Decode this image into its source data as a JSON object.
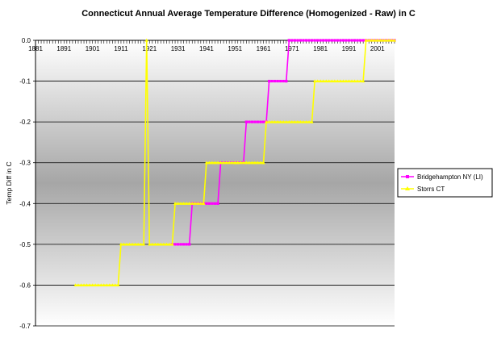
{
  "chart_data": {
    "type": "line",
    "title": "Connecticut Annual Average Temperature Difference (Homogenized - Raw) in C",
    "xlabel": "",
    "ylabel": "Temp Diff in C",
    "xlim": [
      1881,
      2007
    ],
    "ylim": [
      -0.7,
      0.0
    ],
    "x_tick_labels": [
      "1881",
      "1891",
      "1901",
      "1911",
      "1921",
      "1931",
      "1941",
      "1951",
      "1961",
      "1971",
      "1981",
      "1991",
      "2001"
    ],
    "y_tick_labels": [
      "0.0",
      "-0.1",
      "-0.2",
      "-0.3",
      "-0.4",
      "-0.5",
      "-0.6",
      "-0.7"
    ],
    "grid": true,
    "legend_position": "right",
    "colors": {
      "bridgehampton": "#FF00FF",
      "storrs": "#FFFF00",
      "plot_top": "#ffffff",
      "plot_bottom": "#a8a8a8"
    },
    "series": [
      {
        "name": "Bridgehampton NY (LI)",
        "color": "#FF00FF",
        "marker": "square",
        "points": [
          [
            1929,
            -0.5
          ],
          [
            1935,
            -0.5
          ],
          [
            1936,
            -0.4
          ],
          [
            1945,
            -0.4
          ],
          [
            1946,
            -0.3
          ],
          [
            1954,
            -0.3
          ],
          [
            1955,
            -0.2
          ],
          [
            1962,
            -0.2
          ],
          [
            1963,
            -0.1
          ],
          [
            1969,
            -0.1
          ],
          [
            1970,
            0.0
          ],
          [
            2007,
            0.0
          ]
        ]
      },
      {
        "name": "Storrs CT",
        "color": "#FFFF00",
        "marker": "triangle",
        "points": [
          [
            1895,
            -0.6
          ],
          [
            1910,
            -0.6
          ],
          [
            1911,
            -0.5
          ],
          [
            1919,
            -0.5
          ],
          [
            1920,
            0.0
          ],
          [
            1921,
            -0.5
          ],
          [
            1929,
            -0.5
          ],
          [
            1930,
            -0.4
          ],
          [
            1940,
            -0.4
          ],
          [
            1941,
            -0.3
          ],
          [
            1951,
            -0.3
          ],
          [
            1952,
            -0.3
          ],
          [
            1961,
            -0.3
          ],
          [
            1962,
            -0.2
          ],
          [
            1978,
            -0.2
          ],
          [
            1979,
            -0.1
          ],
          [
            1996,
            -0.1
          ],
          [
            1997,
            0.0
          ],
          [
            2007,
            0.0
          ]
        ]
      }
    ]
  }
}
